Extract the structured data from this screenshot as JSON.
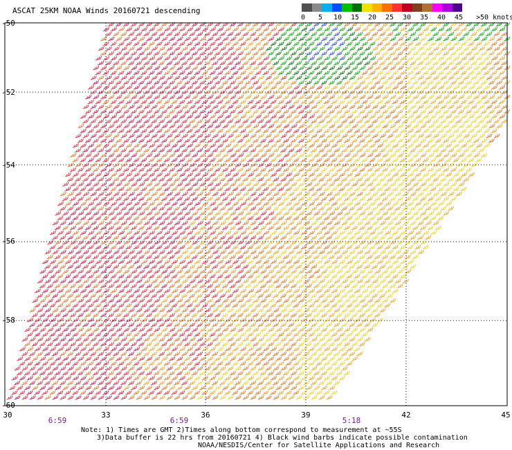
{
  "title": "ASCAT 25KM NOAA Winds 20160721 descending",
  "lat_labels": [
    "-50",
    "-52",
    "-54",
    "-56",
    "-58",
    "-60"
  ],
  "lon_labels": [
    "30",
    "33",
    "36",
    "39",
    "42",
    "45"
  ],
  "time_labels": [
    "6:59",
    "6:59",
    "5:18"
  ],
  "scale": {
    "ticks": [
      "0",
      "5",
      "10",
      "15",
      "20",
      "25",
      "30",
      "35",
      "40",
      "45"
    ],
    "unit": ">50 knots",
    "colors": [
      "#505050",
      "#8a8a8a",
      "#00b0f0",
      "#0050ff",
      "#00c000",
      "#007000",
      "#f0e000",
      "#ffb000",
      "#ff7000",
      "#ff3030",
      "#c00020",
      "#804020",
      "#b07030",
      "#ff00ff",
      "#b000e0",
      "#500090"
    ]
  },
  "notes": [
    "Note: 1) Times are GMT 2)Times along bottom correspond to measurement at ~55S",
    "3)Data buffer is 22 hrs from 20160721 4) Black wind barbs indicate possible contamination",
    "NOAA/NESDIS/Center for Satellite Applications and Research"
  ],
  "wind_colors": {
    "red": "#e02030",
    "dark_red": "#c01040",
    "orange": "#e07020",
    "light_orange": "#f0a020",
    "yellow": "#f0d020",
    "green": "#00a000",
    "dark_green": "#006000",
    "blue": "#2040d0"
  }
}
